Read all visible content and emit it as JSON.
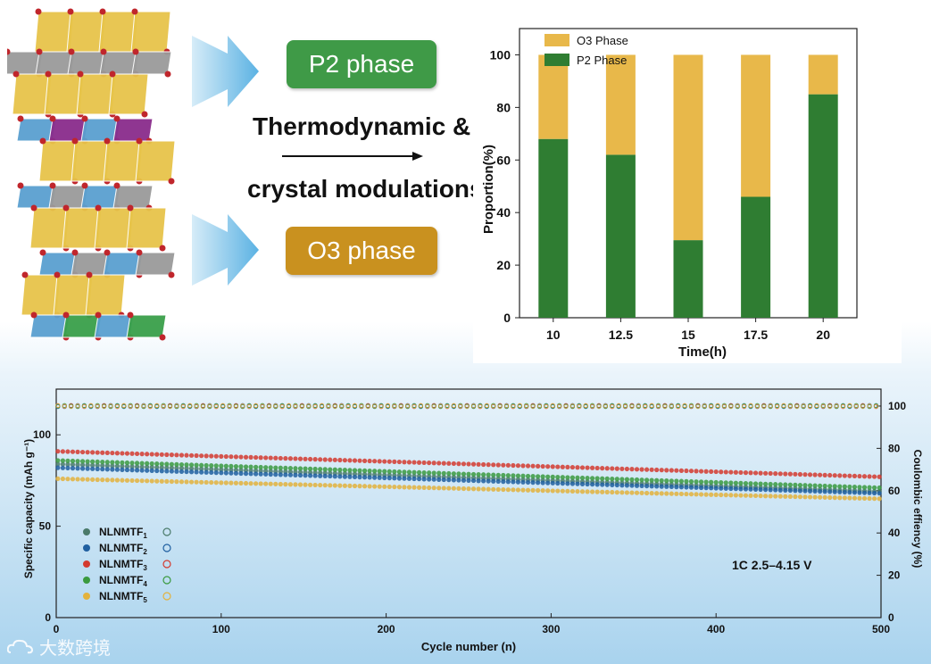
{
  "left_panel": {
    "p2_label": "P2 phase",
    "o3_label": "O3 phase",
    "modulation_line1": "Thermodynamic &",
    "modulation_line2": "crystal modulations"
  },
  "watermark": {
    "text": "大数跨境",
    "icon": "cloud-logo-icon"
  },
  "chart_data": [
    {
      "type": "bar",
      "stacked": true,
      "categories": [
        "10",
        "12.5",
        "15",
        "17.5",
        "20"
      ],
      "series": [
        {
          "name": "P2 Phase",
          "values": [
            68,
            62,
            29.5,
            46,
            85
          ],
          "color": "#2f7d32"
        },
        {
          "name": "O3 Phase",
          "values": [
            32,
            38,
            70.5,
            54,
            15
          ],
          "color": "#e8b84a"
        }
      ],
      "xlabel": "Time(h)",
      "ylabel": "Proportion(%)",
      "ylim": [
        0,
        110
      ],
      "yticks": [
        "0",
        "20",
        "40",
        "60",
        "80",
        "100"
      ],
      "legend": [
        "O3 Phase",
        "P2 Phase"
      ],
      "legend_position": "top-left"
    },
    {
      "type": "scatter",
      "xlabel": "Cycle number (n)",
      "ylabel": "Specific capacity (mAh g⁻¹)",
      "y2label": "Coulombic effiency (%)",
      "xlim": [
        0,
        500
      ],
      "ylim": [
        0,
        125
      ],
      "y2lim": [
        0,
        108
      ],
      "xticks": [
        "0",
        "100",
        "200",
        "300",
        "400",
        "500"
      ],
      "yticks": [
        "0",
        "50",
        "100"
      ],
      "y2ticks": [
        "0",
        "20",
        "40",
        "60",
        "80",
        "100"
      ],
      "annotation": "1C 2.5–4.15 V",
      "series": [
        {
          "name": "NLNMTF",
          "sub": "1",
          "color": "#4a7a6a",
          "capacity_start": 84,
          "capacity_end": 69,
          "ce": 100
        },
        {
          "name": "NLNMTF",
          "sub": "2",
          "color": "#1f5fa0",
          "capacity_start": 82,
          "capacity_end": 68,
          "ce": 100
        },
        {
          "name": "NLNMTF",
          "sub": "3",
          "color": "#d43a2f",
          "capacity_start": 91,
          "capacity_end": 77,
          "ce": 100
        },
        {
          "name": "NLNMTF",
          "sub": "4",
          "color": "#3a9a3f",
          "capacity_start": 86,
          "capacity_end": 71,
          "ce": 100
        },
        {
          "name": "NLNMTF",
          "sub": "5",
          "color": "#e3b23c",
          "capacity_start": 76,
          "capacity_end": 65,
          "ce": 100
        }
      ]
    }
  ]
}
